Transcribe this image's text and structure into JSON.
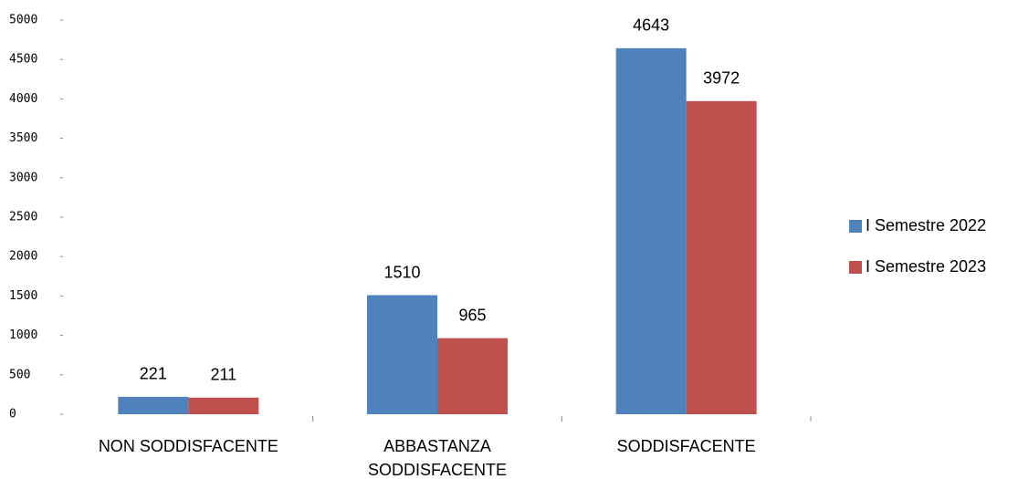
{
  "chart_data": {
    "type": "bar",
    "categories": [
      "NON SODDISFACENTE",
      "ABBASTANZA SODDISFACENTE",
      "SODDISFACENTE"
    ],
    "series": [
      {
        "name": "I Semestre 2022",
        "color": "#4f81bd",
        "values": [
          221,
          1510,
          4643
        ]
      },
      {
        "name": "I Semestre 2023",
        "color": "#c0504d",
        "values": [
          211,
          965,
          3972
        ]
      }
    ],
    "ylim": [
      0,
      5000
    ],
    "yticks": [
      0,
      500,
      1000,
      1500,
      2000,
      2500,
      3000,
      3500,
      4000,
      4500,
      5000
    ],
    "legend": "right"
  }
}
